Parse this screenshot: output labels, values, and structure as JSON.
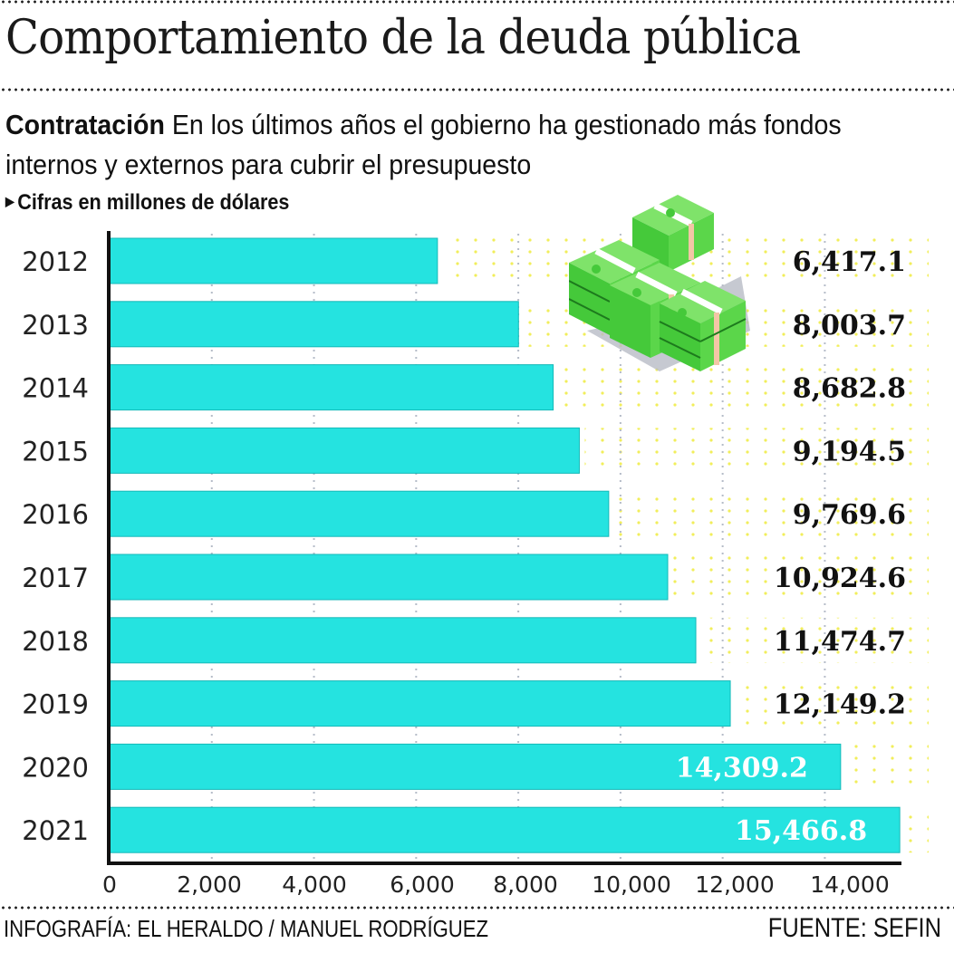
{
  "header": {
    "title": "Comportamiento de la deuda pública",
    "subtitle_bold": "Contratación",
    "subtitle_text": " En los últimos años el gobierno ha gestionado más fondos internos y externos para cubrir el presupuesto",
    "units_marker": "▶",
    "units_note": "Cifras en millones de dólares"
  },
  "illustration": {
    "icon": "money-stack-icon"
  },
  "colors": {
    "bar": "#25e3e0",
    "bar_edge": "#14b9b8",
    "dots_yellow": "#f1ee5b",
    "text": "#111111",
    "label_inside": "#ffffff"
  },
  "chart_data": {
    "type": "bar",
    "orientation": "horizontal",
    "title": "Comportamiento de la deuda pública",
    "xlabel": "",
    "ylabel": "",
    "units": "millones de dólares",
    "categories": [
      "2012",
      "2013",
      "2014",
      "2015",
      "2016",
      "2017",
      "2018",
      "2019",
      "2020",
      "2021"
    ],
    "values": [
      6417.1,
      8003.7,
      8682.8,
      9194.5,
      9769.6,
      10924.6,
      11474.7,
      12149.2,
      14309.2,
      15466.8
    ],
    "value_labels": [
      "6,417.1",
      "8,003.7",
      "8,682.8",
      "9,194.5",
      "9,769.6",
      "10,924.6",
      "11,474.7",
      "12,149.2",
      "14,309.2",
      "15,466.8"
    ],
    "labels_inside_bar": [
      false,
      false,
      false,
      false,
      false,
      false,
      false,
      false,
      true,
      true
    ],
    "xticks": [
      0,
      2000,
      4000,
      6000,
      8000,
      10000,
      12000,
      14000
    ],
    "xtick_labels": [
      "0",
      "2,000",
      "4,000",
      "6,000",
      "8,000",
      "10,000",
      "12,000",
      "14,000"
    ],
    "xlim": [
      0,
      15000
    ],
    "grid": true,
    "legend": "none"
  },
  "footer": {
    "credit": "INFOGRAFÍA: EL HERALDO / MANUEL RODRÍGUEZ",
    "source": "FUENTE: SEFIN"
  }
}
